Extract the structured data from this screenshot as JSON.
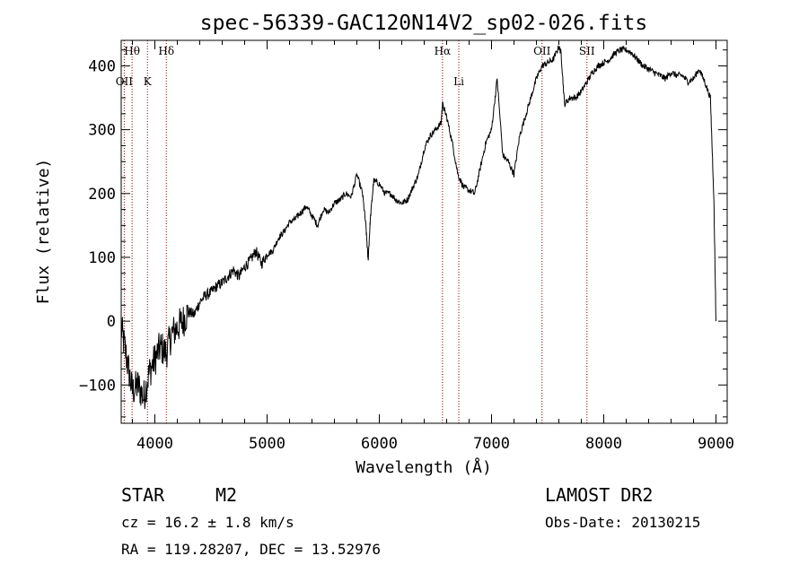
{
  "chart_data": {
    "type": "line",
    "title": "spec-56339-GAC120N14V2_sp02-026.fits",
    "xlabel": "Wavelength (Å)",
    "ylabel": "Flux (relative)",
    "xlim": [
      3700,
      9100
    ],
    "ylim": [
      -160,
      440
    ],
    "xticks": [
      4000,
      5000,
      6000,
      7000,
      8000,
      9000
    ],
    "yticks": [
      -100,
      0,
      100,
      200,
      300,
      400
    ],
    "series": [
      {
        "x": [
          3700,
          3750,
          3800,
          3850,
          3900,
          3950,
          4000,
          4050,
          4100,
          4150,
          4200,
          4250,
          4300,
          4350,
          4400,
          4450,
          4500,
          4550,
          4600,
          4650,
          4700,
          4750,
          4800,
          4850,
          4900,
          4950,
          5000,
          5050,
          5100,
          5150,
          5200,
          5250,
          5300,
          5350,
          5400,
          5450,
          5500,
          5550,
          5600,
          5650,
          5700,
          5750,
          5800,
          5850,
          5880,
          5900,
          5920,
          5950,
          6000,
          6050,
          6100,
          6150,
          6200,
          6250,
          6300,
          6350,
          6400,
          6450,
          6500,
          6550,
          6563,
          6600,
          6650,
          6700,
          6750,
          6800,
          6850,
          6900,
          6950,
          7000,
          7050,
          7100,
          7150,
          7200,
          7250,
          7300,
          7350,
          7400,
          7450,
          7500,
          7550,
          7600,
          7620,
          7650,
          7700,
          7750,
          7800,
          7850,
          7900,
          7950,
          8000,
          8050,
          8100,
          8150,
          8200,
          8250,
          8300,
          8350,
          8400,
          8450,
          8500,
          8550,
          8600,
          8650,
          8700,
          8750,
          8800,
          8850,
          8900,
          8950,
          8980,
          9000
        ],
        "y": [
          -10,
          -60,
          -110,
          -100,
          -120,
          -80,
          -60,
          -40,
          -50,
          -20,
          -10,
          0,
          15,
          10,
          30,
          40,
          45,
          55,
          60,
          70,
          80,
          70,
          85,
          95,
          110,
          90,
          105,
          110,
          130,
          140,
          155,
          160,
          170,
          180,
          165,
          150,
          175,
          170,
          185,
          190,
          200,
          195,
          230,
          200,
          150,
          95,
          160,
          220,
          215,
          200,
          200,
          190,
          185,
          190,
          210,
          230,
          270,
          290,
          300,
          310,
          340,
          320,
          280,
          230,
          210,
          205,
          200,
          240,
          280,
          300,
          380,
          260,
          250,
          230,
          290,
          320,
          350,
          380,
          400,
          405,
          410,
          430,
          420,
          340,
          350,
          350,
          360,
          375,
          390,
          400,
          405,
          410,
          420,
          425,
          425,
          420,
          410,
          400,
          395,
          390,
          385,
          380,
          390,
          385,
          385,
          375,
          380,
          395,
          375,
          350,
          200,
          0
        ]
      }
    ],
    "lines": [
      {
        "label": "Hθ",
        "x": 3797,
        "row": 0
      },
      {
        "label": "OII",
        "x": 3727,
        "row": 1
      },
      {
        "label": "K",
        "x": 3934,
        "row": 1
      },
      {
        "label": "Hδ",
        "x": 4102,
        "row": 0
      },
      {
        "label": "Hα",
        "x": 6563,
        "row": 0
      },
      {
        "label": "Li",
        "x": 6708,
        "row": 1
      },
      {
        "label": "OII",
        "x": 7450,
        "row": 0
      },
      {
        "label": "SII",
        "x": 7850,
        "row": 0
      }
    ],
    "grid": false,
    "line_color": "#000000",
    "marker_color": "#8b0000"
  },
  "info": {
    "class": "STAR",
    "subclass": "M2",
    "release": "LAMOST DR2",
    "cz": "cz = 16.2 ± 1.8 km/s",
    "obsdate": "Obs-Date: 20130215",
    "radec": "RA = 119.28207, DEC =  13.52976"
  }
}
